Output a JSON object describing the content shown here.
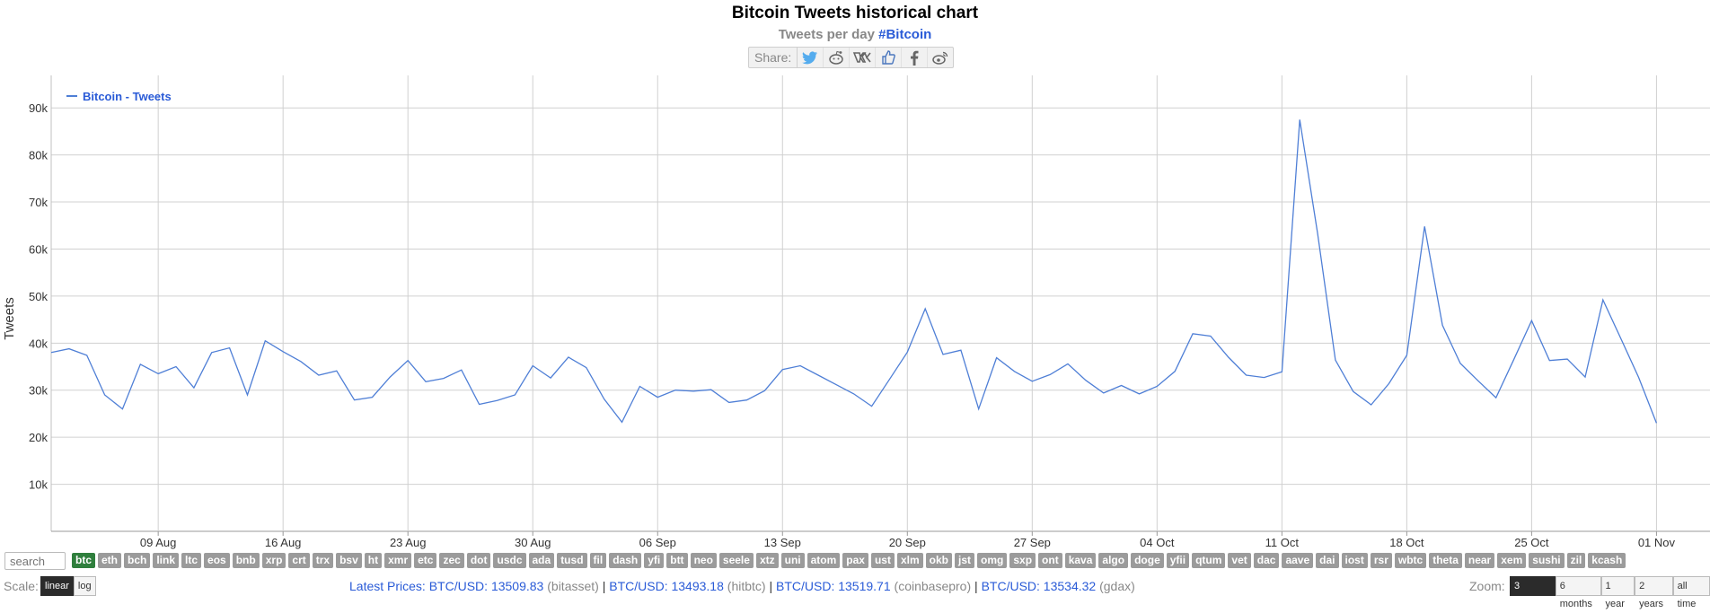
{
  "header": {
    "title": "Bitcoin Tweets historical chart",
    "subtitle_prefix": "Tweets per day",
    "subtitle_tag": "#Bitcoin",
    "share_label": "Share:",
    "share_icons": [
      "twitter-icon",
      "reddit-icon",
      "vk-icon",
      "like-icon",
      "facebook-icon",
      "weibo-icon"
    ]
  },
  "colors": {
    "line": "#4f7fd6",
    "grid": "#d0d0d0",
    "active_coin": "#2f7f3d",
    "link": "#2a5bd7"
  },
  "chart_data": {
    "type": "line",
    "ylabel": "Tweets",
    "ylim": [
      0,
      95000
    ],
    "yticks": [
      "10k",
      "20k",
      "30k",
      "40k",
      "50k",
      "60k",
      "70k",
      "80k",
      "90k"
    ],
    "xlim": [
      "2020-08-03",
      "2020-11-04"
    ],
    "xticks": [
      "09 Aug",
      "16 Aug",
      "23 Aug",
      "30 Aug",
      "06 Sep",
      "13 Sep",
      "20 Sep",
      "27 Sep",
      "04 Oct",
      "11 Oct",
      "18 Oct",
      "25 Oct",
      "01 Nov"
    ],
    "legend": "top-left",
    "grid": true,
    "series": [
      {
        "name": "Bitcoin - Tweets",
        "x_start": "2020-08-03",
        "values": [
          38000,
          38800,
          37400,
          29000,
          26000,
          35500,
          33500,
          35000,
          30500,
          38000,
          39000,
          29000,
          40500,
          38200,
          36100,
          33200,
          34100,
          27900,
          28500,
          32800,
          36300,
          31800,
          32500,
          34300,
          27000,
          27800,
          29000,
          35200,
          32600,
          37000,
          34800,
          28100,
          23200,
          30800,
          28500,
          30000,
          29800,
          30100,
          27400,
          27900,
          29900,
          34400,
          35200,
          33200,
          31200,
          29200,
          26600,
          32300,
          38100,
          47300,
          37600,
          38500,
          26000,
          36900,
          34000,
          31900,
          33300,
          35600,
          32100,
          29400,
          31000,
          29200,
          30800,
          34000,
          42000,
          41500,
          37000,
          33200,
          32700,
          33900,
          87500,
          63300,
          36400,
          29700,
          26900,
          31400,
          37400,
          64800,
          43800,
          35700,
          32000,
          28400,
          36500,
          44800,
          36300,
          36600,
          32800,
          49200,
          41000,
          32700,
          23000
        ]
      }
    ]
  },
  "coins": [
    "btc",
    "eth",
    "bch",
    "link",
    "ltc",
    "eos",
    "bnb",
    "xrp",
    "crt",
    "trx",
    "bsv",
    "ht",
    "xmr",
    "etc",
    "zec",
    "dot",
    "usdc",
    "ada",
    "tusd",
    "fil",
    "dash",
    "yfi",
    "btt",
    "neo",
    "seele",
    "xtz",
    "uni",
    "atom",
    "pax",
    "ust",
    "xlm",
    "okb",
    "jst",
    "omg",
    "sxp",
    "ont",
    "kava",
    "algo",
    "doge",
    "yfii",
    "qtum",
    "vet",
    "dac",
    "aave",
    "dai",
    "iost",
    "rsr",
    "wbtc",
    "theta",
    "near",
    "xem",
    "sushi",
    "zil",
    "kcash"
  ],
  "active_coin": "btc",
  "search": {
    "placeholder": "search"
  },
  "scale": {
    "label": "Scale:",
    "linear": "linear",
    "log": "log"
  },
  "prices": {
    "label": "Latest Prices:",
    "items": [
      {
        "pair": "BTC/USD:",
        "value": "13509.83",
        "exchange": "(bitasset)"
      },
      {
        "pair": "BTC/USD:",
        "value": "13493.18",
        "exchange": "(hitbtc)"
      },
      {
        "pair": "BTC/USD:",
        "value": "13519.71",
        "exchange": "(coinbasepro)"
      },
      {
        "pair": "BTC/USD:",
        "value": "13534.32",
        "exchange": "(gdax)"
      }
    ]
  },
  "zoom": {
    "label": "Zoom:",
    "options": [
      "3 months",
      "6 months",
      "1 year",
      "2 years",
      "all time"
    ],
    "active": "3 months"
  }
}
